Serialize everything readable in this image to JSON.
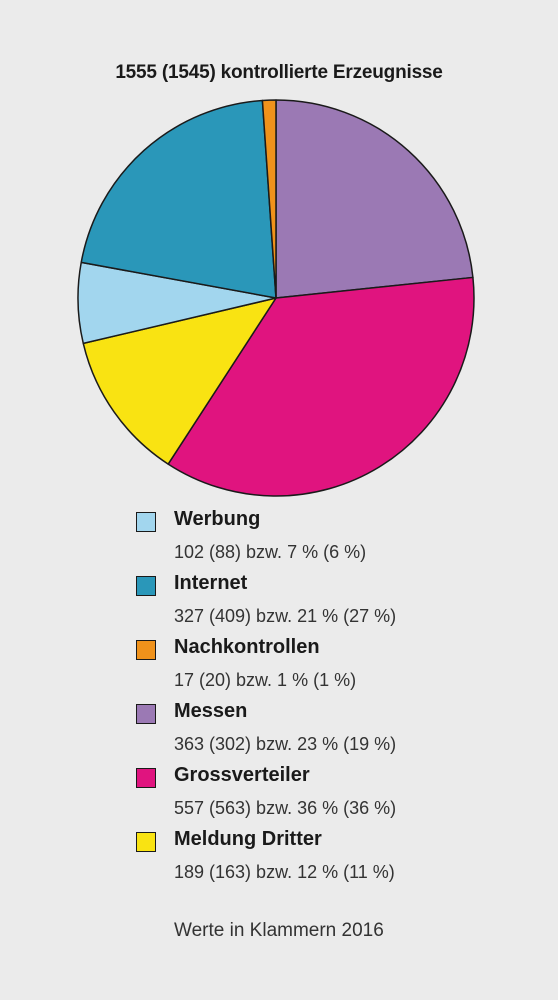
{
  "chart_data": {
    "type": "pie",
    "title": "1555 (1545) kontrollierte Erzeugnisse",
    "slices": [
      {
        "name": "Messen",
        "value": 363,
        "color": "#9b79b4"
      },
      {
        "name": "Grossverteiler",
        "value": 557,
        "color": "#e0147f"
      },
      {
        "name": "Meldung Dritter",
        "value": 189,
        "color": "#f9e312"
      },
      {
        "name": "Werbung",
        "value": 102,
        "color": "#a2d6ee"
      },
      {
        "name": "Internet",
        "value": 327,
        "color": "#2a97b9"
      },
      {
        "name": "Nachkontrollen",
        "value": 17,
        "color": "#f0921b"
      }
    ]
  },
  "legend": [
    {
      "name": "Werbung",
      "detail": "102 (88) bzw. 7 % (6 %)",
      "color": "#a2d6ee"
    },
    {
      "name": "Internet",
      "detail": "327 (409) bzw. 21 % (27 %)",
      "color": "#2a97b9"
    },
    {
      "name": "Nachkontrollen",
      "detail": "17 (20) bzw. 1 % (1 %)",
      "color": "#f0921b"
    },
    {
      "name": "Messen",
      "detail": "363 (302) bzw. 23 % (19 %)",
      "color": "#9b79b4"
    },
    {
      "name": "Grossverteiler",
      "detail": "557 (563) bzw. 36 % (36 %)",
      "color": "#e0147f"
    },
    {
      "name": "Meldung Dritter",
      "detail": "189 (163) bzw. 12 % (11 %)",
      "color": "#f9e312"
    }
  ],
  "footnote": "Werte in Klammern 2016"
}
